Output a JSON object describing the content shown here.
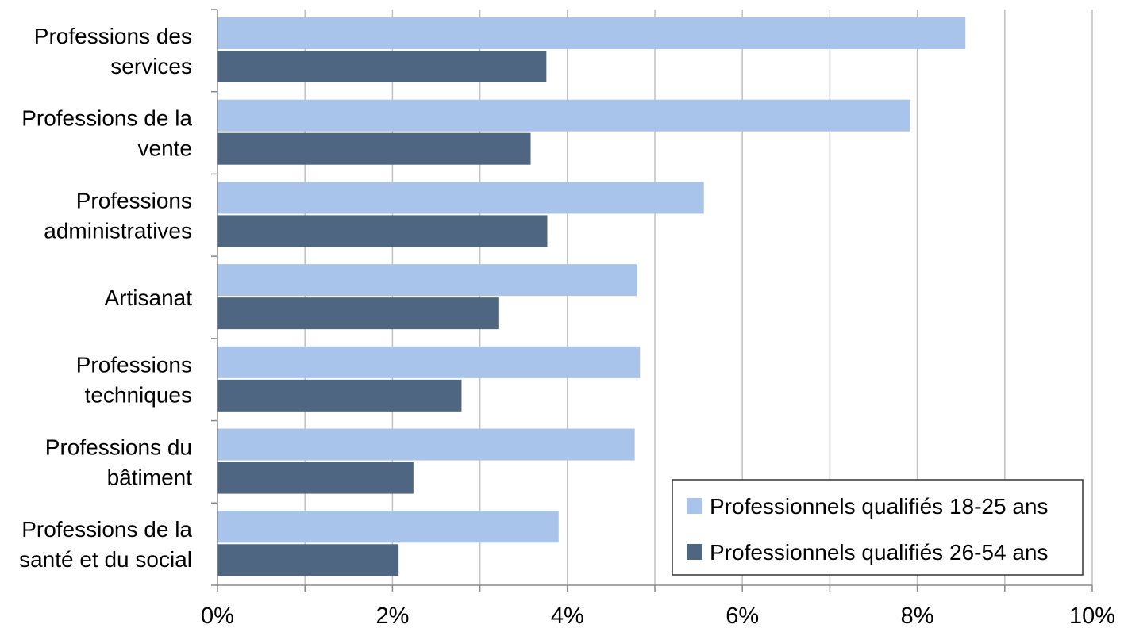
{
  "chart_data": {
    "type": "bar",
    "orientation": "horizontal",
    "categories": [
      [
        "Professions des",
        "services"
      ],
      [
        "Professions de la",
        "vente"
      ],
      [
        "Professions",
        "administratives"
      ],
      [
        "Artisanat"
      ],
      [
        "Professions",
        "techniques"
      ],
      [
        "Professions du",
        "bâtiment"
      ],
      [
        "Professions de la",
        "santé et du social"
      ]
    ],
    "series": [
      {
        "name": "Professionnels qualifiés 18-25 ans",
        "color": "#a9c4eb",
        "values": [
          8.55,
          7.92,
          5.56,
          4.8,
          4.83,
          4.77,
          3.9
        ]
      },
      {
        "name": "Professionnels qualifiés 26-54 ans",
        "color": "#4f6683",
        "values": [
          3.76,
          3.58,
          3.77,
          3.22,
          2.79,
          2.24,
          2.07
        ]
      }
    ],
    "xlim": [
      0,
      10
    ],
    "xticks": [
      "0%",
      "2%",
      "4%",
      "6%",
      "8%",
      "10%"
    ],
    "grid": true,
    "legend_position": "bottom-right"
  }
}
